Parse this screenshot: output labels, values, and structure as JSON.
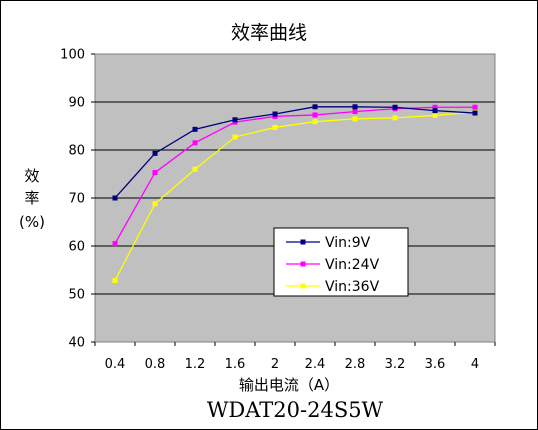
{
  "chart_data": {
    "type": "line",
    "title": "效率曲线",
    "xlabel": "输出电流（A）",
    "ylabel_line1": "效",
    "ylabel_line2": "率",
    "ylabel_line3": "(%)",
    "model": "WDAT20-24S5W",
    "x": [
      0.4,
      0.8,
      1.2,
      1.6,
      2.0,
      2.4,
      2.8,
      3.2,
      3.6,
      4.0
    ],
    "x_tick_labels": [
      "0.4",
      "0.8",
      "1.2",
      "1.6",
      "2",
      "2.4",
      "2.8",
      "3.2",
      "3.6",
      "4"
    ],
    "y_ticks": [
      40,
      50,
      60,
      70,
      80,
      90,
      100
    ],
    "ylim": [
      40,
      100
    ],
    "grid": "horizontal",
    "legend_position": "lower-right",
    "plot_background": "#c0c0c0",
    "series": [
      {
        "name": "Vin:9V",
        "color": "#000080",
        "marker": "square",
        "values": [
          70.0,
          79.3,
          84.3,
          86.3,
          87.5,
          89.0,
          89.0,
          88.9,
          88.2,
          87.7
        ]
      },
      {
        "name": "Vin:24V",
        "color": "#ff00ff",
        "marker": "square",
        "values": [
          60.5,
          75.3,
          81.5,
          85.8,
          87.0,
          87.3,
          88.0,
          88.6,
          88.9,
          88.9
        ]
      },
      {
        "name": "Vin:36V",
        "color": "#ffff00",
        "marker": "square",
        "values": [
          52.8,
          68.8,
          76.0,
          82.7,
          84.7,
          85.9,
          86.5,
          86.7,
          87.2,
          87.9
        ]
      }
    ]
  }
}
